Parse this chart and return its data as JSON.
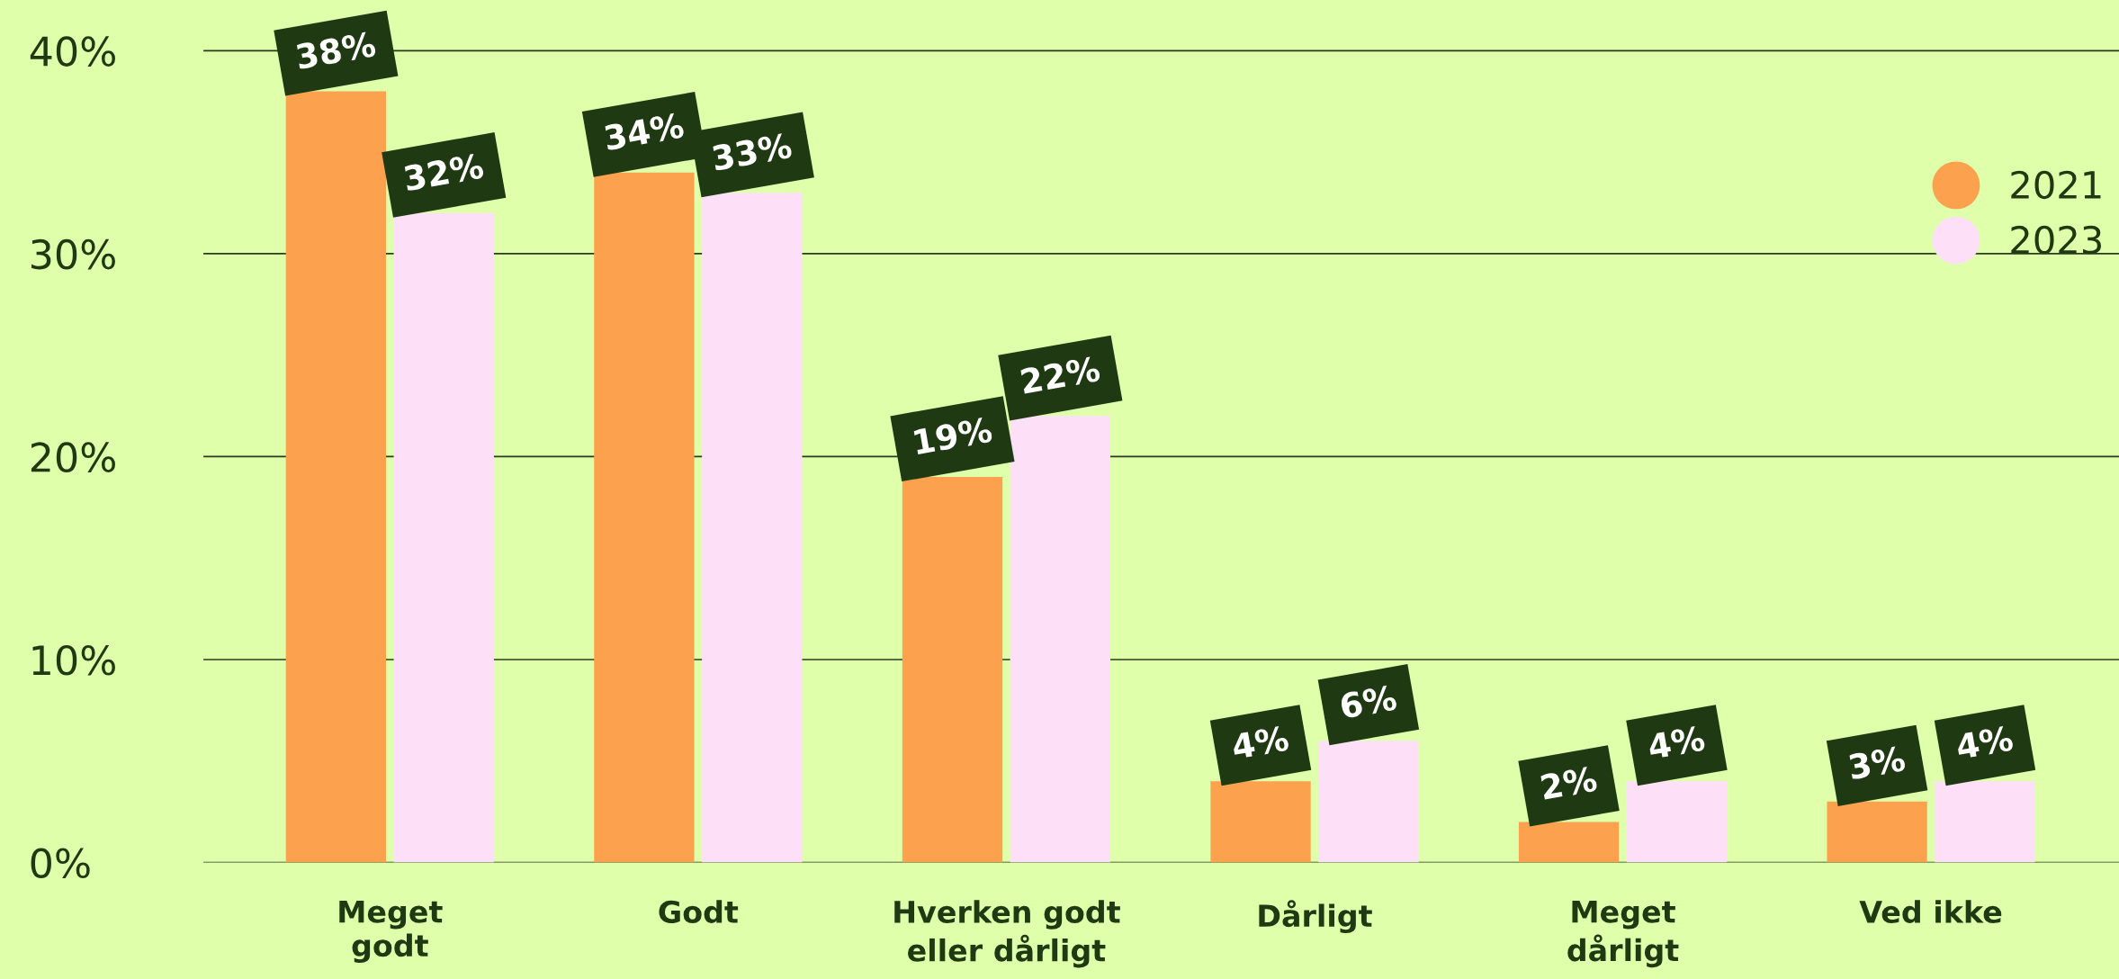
{
  "chart_data": {
    "type": "bar",
    "categories": [
      "Meget\ngodt",
      "Godt",
      "Hverken godt\neller dårligt",
      "Dårligt",
      "Meget\ndårligt",
      "Ved ikke"
    ],
    "series": [
      {
        "name": "2021",
        "color": "#fca24e",
        "values": [
          38,
          34,
          19,
          4,
          2,
          3
        ],
        "value_labels": [
          "38%",
          "34%",
          "19%",
          "4%",
          "2%",
          "3%"
        ]
      },
      {
        "name": "2023",
        "color": "#fde0f7",
        "values": [
          32,
          33,
          22,
          6,
          4,
          4
        ],
        "value_labels": [
          "32%",
          "33%",
          "22%",
          "6%",
          "4%",
          "4%"
        ]
      }
    ],
    "ylim": [
      0,
      42.5
    ],
    "yticks": [
      {
        "value": 0,
        "label": "0%"
      },
      {
        "value": 10,
        "label": "10%"
      },
      {
        "value": 20,
        "label": "20%"
      },
      {
        "value": 30,
        "label": "30%"
      },
      {
        "value": 40,
        "label": "40%"
      }
    ],
    "grid": "y",
    "legend": "right"
  }
}
